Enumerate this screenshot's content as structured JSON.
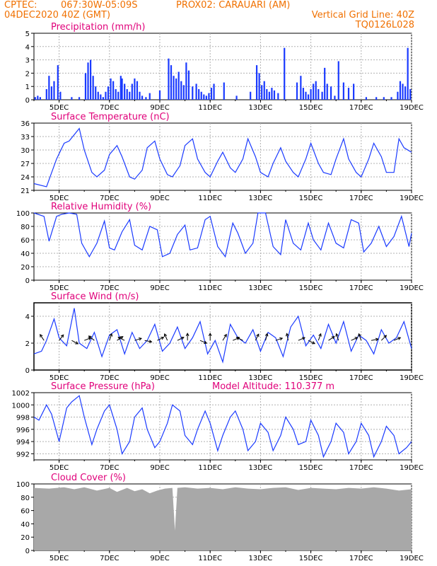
{
  "header": {
    "source": "CPTEC:",
    "coords": "067:30W-05:09S",
    "station": "PROX02: CARAUARI (AM)",
    "date": "04DEC2020 40Z (GMT)",
    "grid_note": "Vertical Grid Line: 40Z",
    "model_code": "TQ0126L028"
  },
  "colors": {
    "header": "#f07000",
    "title": "#e0007a",
    "series": "#1a3aff",
    "cloud": "#a8a8a8",
    "grid": "#b0b0b0"
  },
  "x_axis": {
    "tick_labels": [
      "5DEC",
      "7DEC",
      "9DEC",
      "11DEC",
      "13DEC",
      "15DEC",
      "17DEC",
      "19DEC"
    ],
    "start_day": 4,
    "end_day": 19
  },
  "chart_data": [
    {
      "name": "precipitation",
      "type": "bar",
      "title": "Precipitation (mm/h)",
      "yticks": [
        0,
        1,
        2,
        3,
        4,
        5
      ],
      "ylim": [
        0,
        5
      ],
      "x": [
        4.05,
        4.15,
        4.25,
        4.5,
        4.6,
        4.7,
        4.8,
        4.95,
        5.05,
        5.5,
        5.8,
        6.05,
        6.15,
        6.25,
        6.35,
        6.45,
        6.55,
        6.65,
        6.75,
        6.85,
        6.95,
        7.05,
        7.15,
        7.25,
        7.35,
        7.45,
        7.5,
        7.6,
        7.7,
        7.8,
        7.9,
        8.0,
        8.1,
        8.2,
        8.3,
        8.45,
        8.6,
        9.0,
        9.35,
        9.45,
        9.55,
        9.65,
        9.75,
        9.85,
        9.95,
        10.05,
        10.15,
        10.3,
        10.45,
        10.55,
        10.65,
        10.75,
        10.85,
        10.95,
        11.05,
        11.15,
        11.55,
        12.05,
        12.6,
        12.85,
        12.95,
        13.05,
        13.15,
        13.25,
        13.35,
        13.45,
        13.55,
        13.7,
        13.95,
        14.45,
        14.6,
        14.7,
        14.8,
        14.9,
        15.0,
        15.1,
        15.2,
        15.3,
        15.45,
        15.55,
        15.65,
        15.8,
        15.95,
        16.1,
        16.3,
        16.5,
        16.7,
        17.2,
        17.6,
        17.9,
        18.2,
        18.45,
        18.55,
        18.65,
        18.75,
        18.85,
        18.95
      ],
      "values": [
        0.2,
        0.3,
        0.2,
        0.8,
        1.8,
        1.0,
        1.4,
        2.6,
        0.6,
        0.2,
        0.2,
        2.0,
        2.8,
        3.0,
        1.8,
        1.0,
        0.6,
        0.4,
        0.2,
        0.6,
        1.0,
        1.6,
        1.4,
        0.8,
        0.6,
        1.8,
        1.6,
        1.2,
        0.8,
        0.6,
        1.2,
        1.6,
        1.4,
        0.6,
        0.3,
        0.2,
        0.5,
        0.7,
        3.1,
        2.6,
        1.8,
        1.6,
        2.1,
        1.4,
        1.1,
        2.8,
        2.2,
        1.0,
        1.2,
        0.8,
        0.6,
        0.4,
        0.3,
        0.5,
        0.9,
        1.2,
        1.3,
        0.3,
        0.6,
        2.6,
        2.0,
        1.1,
        1.4,
        0.8,
        0.6,
        0.9,
        0.7,
        0.5,
        3.9,
        1.3,
        1.8,
        0.9,
        0.6,
        0.4,
        0.8,
        1.2,
        1.4,
        0.8,
        0.6,
        2.4,
        1.2,
        1.0,
        0.3,
        2.9,
        1.3,
        0.9,
        1.2,
        0.2,
        0.2,
        0.2,
        0.2,
        0.6,
        1.4,
        1.2,
        1.0,
        3.9,
        0.8
      ]
    },
    {
      "name": "temperature",
      "type": "line",
      "title": "Surface Temperature (nC)",
      "yticks": [
        21,
        24,
        27,
        30,
        33,
        36
      ],
      "ylim": [
        21,
        36
      ],
      "x": [
        4.0,
        4.5,
        4.9,
        5.2,
        5.4,
        5.8,
        6.0,
        6.3,
        6.5,
        6.8,
        7.0,
        7.3,
        7.5,
        7.8,
        8.0,
        8.3,
        8.5,
        8.8,
        9.0,
        9.3,
        9.5,
        9.8,
        10.0,
        10.3,
        10.5,
        10.8,
        11.0,
        11.3,
        11.5,
        11.8,
        12.0,
        12.3,
        12.5,
        12.8,
        13.0,
        13.3,
        13.5,
        13.8,
        14.0,
        14.3,
        14.5,
        14.8,
        15.0,
        15.3,
        15.5,
        15.8,
        16.0,
        16.3,
        16.5,
        16.8,
        17.0,
        17.3,
        17.5,
        17.8,
        18.0,
        18.3,
        18.5,
        18.7,
        19.0
      ],
      "values": [
        22.5,
        21.8,
        28.0,
        31.5,
        32.0,
        34.8,
        30.0,
        25.0,
        24.0,
        25.5,
        29.0,
        31.0,
        28.5,
        24.0,
        23.5,
        25.5,
        30.5,
        32.0,
        28.0,
        24.5,
        24.0,
        26.5,
        31.0,
        32.5,
        28.0,
        25.0,
        24.0,
        27.5,
        29.5,
        26.0,
        25.0,
        28.0,
        32.5,
        28.5,
        25.0,
        24.0,
        27.0,
        30.5,
        27.5,
        25.0,
        24.0,
        28.0,
        31.5,
        27.0,
        25.0,
        24.5,
        28.0,
        32.5,
        28.0,
        25.0,
        24.0,
        28.0,
        31.5,
        28.5,
        25.0,
        25.0,
        32.5,
        30.5,
        29.5
      ]
    },
    {
      "name": "humidity",
      "type": "line",
      "title": "Relative Humidity (%)",
      "yticks": [
        0,
        20,
        40,
        60,
        80,
        100
      ],
      "ylim": [
        0,
        100
      ],
      "x": [
        4.0,
        4.4,
        4.6,
        4.9,
        5.1,
        5.4,
        5.7,
        5.9,
        6.2,
        6.5,
        6.8,
        7.0,
        7.2,
        7.5,
        7.8,
        8.0,
        8.3,
        8.6,
        8.9,
        9.1,
        9.4,
        9.7,
        10.0,
        10.2,
        10.5,
        10.8,
        11.0,
        11.3,
        11.6,
        11.9,
        12.1,
        12.4,
        12.7,
        12.9,
        13.2,
        13.5,
        13.8,
        14.0,
        14.3,
        14.6,
        14.9,
        15.1,
        15.4,
        15.7,
        16.0,
        16.3,
        16.6,
        16.9,
        17.1,
        17.4,
        17.7,
        18.0,
        18.3,
        18.6,
        18.9,
        19.0
      ],
      "values": [
        100,
        95,
        58,
        95,
        98,
        100,
        98,
        55,
        35,
        55,
        88,
        48,
        45,
        72,
        90,
        52,
        45,
        80,
        75,
        35,
        40,
        68,
        82,
        45,
        48,
        90,
        95,
        50,
        35,
        85,
        70,
        40,
        55,
        100,
        100,
        50,
        38,
        90,
        55,
        45,
        85,
        60,
        45,
        85,
        55,
        48,
        90,
        85,
        42,
        55,
        80,
        50,
        65,
        95,
        50,
        70
      ]
    },
    {
      "name": "wind",
      "type": "line",
      "title": "Surface Wind (m/s)",
      "yticks": [
        0,
        2,
        4
      ],
      "ylim": [
        0,
        5
      ],
      "x": [
        4.0,
        4.3,
        4.5,
        4.8,
        5.0,
        5.3,
        5.6,
        5.8,
        6.1,
        6.4,
        6.7,
        7.0,
        7.3,
        7.6,
        7.9,
        8.2,
        8.5,
        8.8,
        9.1,
        9.4,
        9.7,
        10.0,
        10.3,
        10.6,
        10.9,
        11.2,
        11.5,
        11.8,
        12.1,
        12.4,
        12.7,
        13.0,
        13.3,
        13.6,
        13.9,
        14.2,
        14.5,
        14.8,
        15.1,
        15.4,
        15.7,
        16.0,
        16.3,
        16.6,
        16.9,
        17.2,
        17.5,
        17.8,
        18.1,
        18.4,
        18.7,
        19.0
      ],
      "values": [
        1.2,
        1.4,
        2.2,
        3.8,
        2.4,
        1.8,
        4.6,
        2.0,
        1.6,
        2.8,
        1.0,
        2.6,
        3.0,
        1.2,
        2.8,
        1.6,
        2.2,
        3.4,
        1.4,
        2.0,
        3.2,
        1.6,
        2.4,
        3.6,
        1.2,
        2.2,
        0.6,
        3.4,
        2.4,
        2.0,
        3.0,
        1.4,
        2.8,
        2.4,
        1.0,
        3.2,
        4.0,
        1.8,
        2.6,
        1.6,
        3.4,
        2.0,
        3.6,
        1.4,
        2.6,
        2.2,
        1.2,
        3.0,
        2.0,
        2.4,
        3.6,
        1.6
      ],
      "vectors": [
        [
          4.4,
          -1,
          1.5
        ],
        [
          5.0,
          1,
          1.3
        ],
        [
          5.5,
          1.5,
          -0.8
        ],
        [
          6.0,
          1.5,
          0.6
        ],
        [
          6.4,
          -1,
          0.8
        ],
        [
          7.0,
          0.5,
          1.5
        ],
        [
          7.3,
          1.2,
          0.8
        ],
        [
          7.6,
          -0.8,
          0.4
        ],
        [
          8.0,
          1,
          0.3
        ],
        [
          8.4,
          1.5,
          -0.3
        ],
        [
          8.9,
          0.8,
          0.4
        ],
        [
          9.3,
          -0.6,
          1.4
        ],
        [
          9.7,
          1.4,
          0.7
        ],
        [
          10.1,
          0,
          1.5
        ],
        [
          10.6,
          1.2,
          -0.5
        ],
        [
          11.0,
          0,
          1
        ],
        [
          11.5,
          0.8,
          1.3
        ],
        [
          11.9,
          1.4,
          0.6
        ],
        [
          12.3,
          -1,
          0.5
        ],
        [
          12.8,
          0.6,
          1.2
        ],
        [
          13.2,
          0.3,
          1.2
        ],
        [
          13.6,
          1.2,
          0.4
        ],
        [
          14.1,
          -0.3,
          1.5
        ],
        [
          14.5,
          1.4,
          0.6
        ],
        [
          14.9,
          1,
          -0.5
        ],
        [
          15.3,
          0.5,
          1.4
        ],
        [
          15.7,
          1.2,
          0.8
        ],
        [
          16.1,
          -0.5,
          1.5
        ],
        [
          16.6,
          1.3,
          0.6
        ],
        [
          17.0,
          -0.4,
          1.1
        ],
        [
          17.4,
          1.5,
          0.3
        ],
        [
          17.8,
          0.8,
          0.8
        ],
        [
          18.3,
          1.4,
          0.6
        ]
      ]
    },
    {
      "name": "pressure",
      "type": "line",
      "title": "Surface Pressure (hPa)",
      "annotation": "Model Altitude: 110.377 m",
      "yticks": [
        992,
        994,
        996,
        998,
        1000,
        1002
      ],
      "ylim": [
        991,
        1002
      ],
      "x": [
        4.0,
        4.2,
        4.5,
        4.7,
        5.0,
        5.3,
        5.5,
        5.8,
        6.0,
        6.3,
        6.5,
        6.8,
        7.0,
        7.3,
        7.5,
        7.8,
        8.0,
        8.3,
        8.5,
        8.8,
        9.0,
        9.3,
        9.5,
        9.8,
        10.0,
        10.3,
        10.5,
        10.8,
        11.0,
        11.3,
        11.5,
        11.8,
        12.0,
        12.3,
        12.5,
        12.8,
        13.0,
        13.3,
        13.5,
        13.8,
        14.0,
        14.3,
        14.5,
        14.8,
        15.0,
        15.3,
        15.5,
        15.8,
        16.0,
        16.3,
        16.5,
        16.8,
        17.0,
        17.3,
        17.5,
        17.8,
        18.0,
        18.3,
        18.5,
        18.8,
        19.0
      ],
      "values": [
        998,
        997.5,
        1000,
        998.5,
        994,
        999.5,
        1000.5,
        1001.5,
        998,
        993.5,
        996,
        999,
        1000,
        996,
        992,
        994,
        998,
        999.5,
        996,
        993,
        994,
        997,
        1000,
        999,
        995,
        993.5,
        996,
        999,
        997,
        992.5,
        995,
        998,
        999,
        996,
        992.5,
        994,
        997,
        995.5,
        992.5,
        995,
        998,
        996,
        993.5,
        994,
        997.5,
        995,
        991.5,
        994,
        997,
        995.5,
        992,
        994,
        997,
        995,
        991.5,
        994,
        996.5,
        995,
        992,
        993,
        994
      ]
    },
    {
      "name": "cloud",
      "type": "area",
      "title": "Cloud Cover (%)",
      "yticks": [
        0,
        20,
        40,
        60,
        80,
        100
      ],
      "ylim": [
        0,
        100
      ],
      "x": [
        4.0,
        4.6,
        5.2,
        5.6,
        6.0,
        6.5,
        7.0,
        7.3,
        7.7,
        8.0,
        8.3,
        8.6,
        8.9,
        9.2,
        9.5,
        9.6,
        9.7,
        10.0,
        10.5,
        11.0,
        11.5,
        12.0,
        12.5,
        13.0,
        13.5,
        14.0,
        14.5,
        15.0,
        15.5,
        16.0,
        16.5,
        17.0,
        17.5,
        18.0,
        18.5,
        19.0
      ],
      "values": [
        94,
        93,
        95,
        92,
        95,
        90,
        94,
        88,
        94,
        89,
        92,
        86,
        90,
        93,
        94,
        30,
        94,
        95,
        93,
        94,
        92,
        95,
        93,
        92,
        94,
        95,
        91,
        94,
        93,
        92,
        94,
        93,
        95,
        93,
        90,
        92
      ]
    }
  ]
}
